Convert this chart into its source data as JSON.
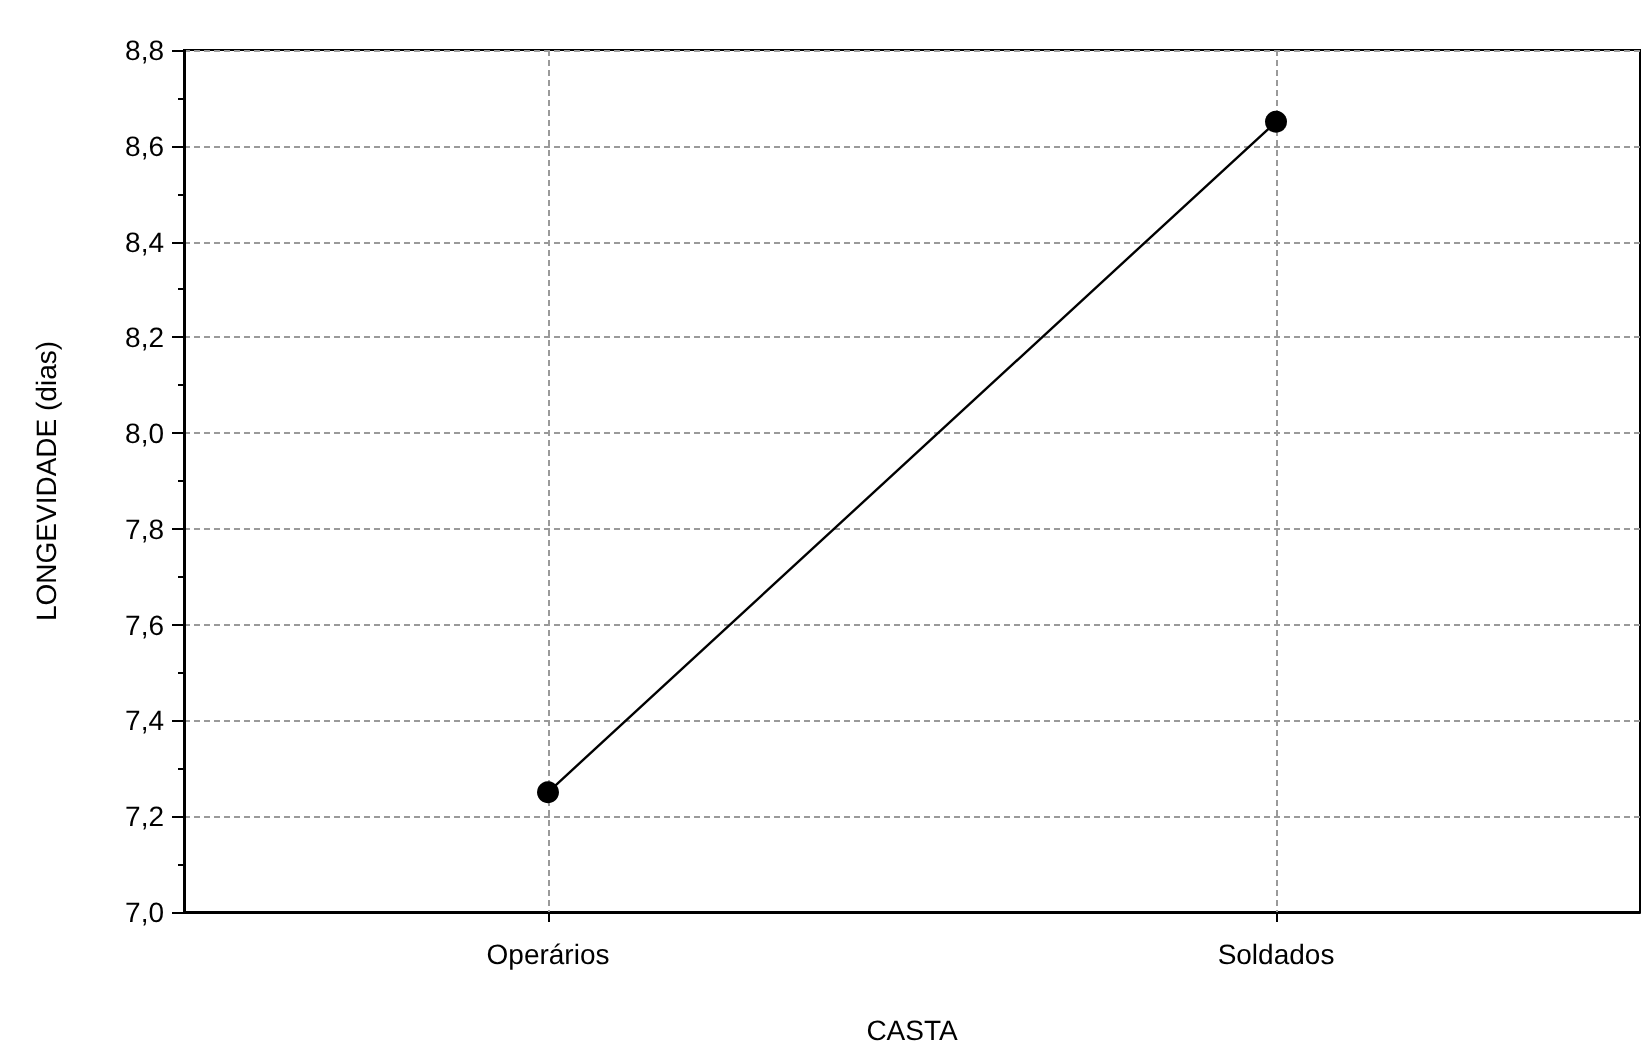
{
  "chart_data": {
    "type": "line",
    "xlabel": "CASTA",
    "ylabel": "LONGEVIDADE (dias)",
    "categories": [
      "Operários",
      "Soldados"
    ],
    "series": [
      {
        "color": "#000000",
        "values": [
          7.25,
          8.65
        ]
      }
    ],
    "ylim": [
      7.0,
      8.8
    ],
    "yticks": [
      {
        "value": 7.0,
        "label": "7,0"
      },
      {
        "value": 7.2,
        "label": "7,2"
      },
      {
        "value": 7.4,
        "label": "7,4"
      },
      {
        "value": 7.6,
        "label": "7,6"
      },
      {
        "value": 7.8,
        "label": "7,8"
      },
      {
        "value": 8.0,
        "label": "8,0"
      },
      {
        "value": 8.2,
        "label": "8,2"
      },
      {
        "value": 8.4,
        "label": "8,4"
      },
      {
        "value": 8.6,
        "label": "8,6"
      },
      {
        "value": 8.8,
        "label": "8,8"
      }
    ],
    "grid": true,
    "marker": "circle",
    "line_style": "solid"
  }
}
